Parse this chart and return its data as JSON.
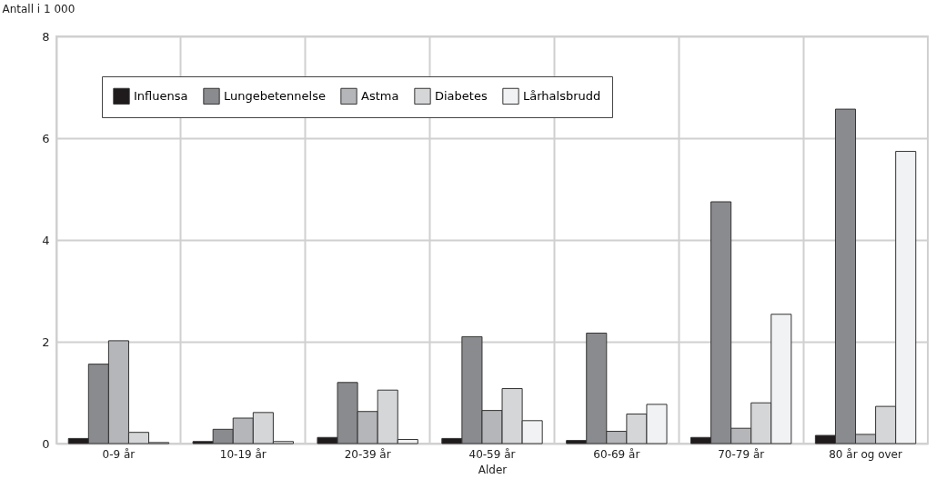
{
  "chart_data": {
    "type": "bar",
    "xlabel": "Alder",
    "ylabel": "Antall i 1 000",
    "categories": [
      "0-9 år",
      "10-19 år",
      "20-39 år",
      "40-59 år",
      "60-69 år",
      "70-79 år",
      "80 år og over"
    ],
    "series": [
      {
        "name": "Influensa",
        "color": "#1f1a1c",
        "values": [
          0.1,
          0.04,
          0.12,
          0.1,
          0.06,
          0.12,
          0.16
        ]
      },
      {
        "name": "Lungebetennelse",
        "color": "#8a8b8e",
        "values": [
          1.56,
          0.28,
          1.2,
          2.1,
          2.17,
          4.75,
          6.57
        ]
      },
      {
        "name": "Astma",
        "color": "#b5b6b9",
        "values": [
          2.02,
          0.5,
          0.63,
          0.65,
          0.24,
          0.3,
          0.18
        ]
      },
      {
        "name": "Diabetes",
        "color": "#d5d6d8",
        "values": [
          0.22,
          0.61,
          1.05,
          1.08,
          0.58,
          0.8,
          0.73
        ]
      },
      {
        "name": "Lårhalsbrudd",
        "color": "#f1f2f3",
        "values": [
          0.02,
          0.04,
          0.08,
          0.45,
          0.77,
          2.54,
          5.74
        ]
      }
    ],
    "ylim": [
      0,
      8
    ],
    "yticks": [
      0,
      2,
      4,
      6,
      8
    ],
    "grid": true,
    "legend": "top left"
  }
}
